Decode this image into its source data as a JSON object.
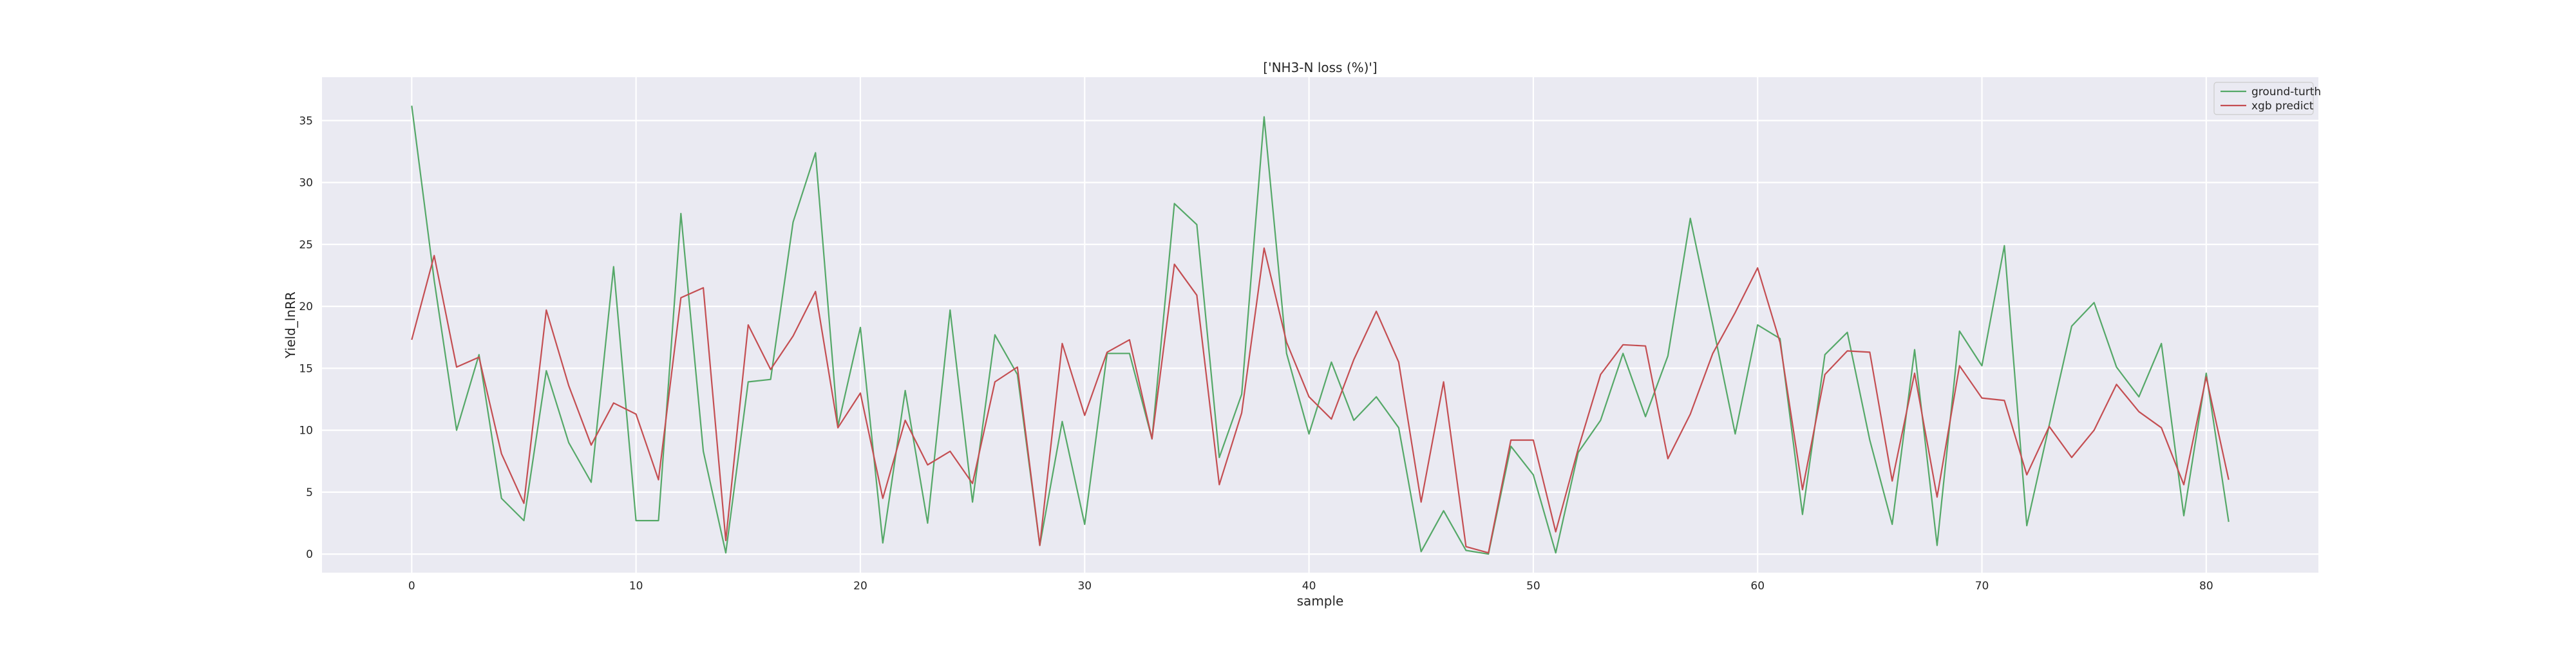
{
  "chart_data": {
    "type": "line",
    "title": "['NH3-N loss (%)']",
    "xlabel": "sample",
    "ylabel": "Yield_lnRR",
    "xlim": [
      -4,
      85
    ],
    "ylim": [
      -1.5,
      38.5
    ],
    "xticks": [
      0,
      10,
      20,
      30,
      40,
      50,
      60,
      70,
      80
    ],
    "yticks": [
      0,
      5,
      10,
      15,
      20,
      25,
      30,
      35
    ],
    "grid": true,
    "legend_position": "top-right",
    "series": [
      {
        "name": "ground-turth",
        "color": "#55a868",
        "values": [
          36.2,
          22.1,
          10.0,
          16.1,
          4.5,
          2.7,
          14.8,
          9.0,
          5.8,
          23.2,
          2.7,
          2.7,
          27.5,
          8.3,
          0.1,
          13.9,
          14.1,
          26.8,
          32.4,
          10.3,
          18.3,
          0.9,
          13.2,
          2.5,
          19.7,
          4.2,
          17.7,
          14.5,
          0.7,
          10.7,
          2.4,
          16.2,
          16.2,
          9.3,
          28.3,
          26.6,
          7.8,
          12.9,
          35.3,
          16.2,
          9.7,
          15.5,
          10.8,
          12.7,
          10.2,
          0.2,
          3.5,
          0.3,
          0.0,
          8.7,
          6.4,
          0.1,
          8.2,
          10.8,
          16.2,
          11.1,
          16.0,
          27.1,
          18.5,
          9.7,
          18.5,
          17.4,
          3.2,
          16.1,
          17.9,
          9.2,
          2.4,
          16.5,
          0.7,
          18.0,
          15.2,
          24.9,
          2.3,
          10.4,
          18.4,
          20.3,
          15.1,
          12.7,
          17.0,
          3.1,
          14.6,
          2.6
        ]
      },
      {
        "name": "xgb predict",
        "color": "#c44e52",
        "values": [
          17.3,
          24.1,
          15.1,
          15.9,
          8.1,
          4.1,
          19.7,
          13.6,
          8.8,
          12.2,
          11.3,
          6.0,
          20.7,
          21.5,
          1.1,
          18.5,
          14.9,
          17.6,
          21.2,
          10.2,
          13.0,
          4.5,
          10.8,
          7.2,
          8.3,
          5.7,
          13.9,
          15.1,
          0.7,
          17.0,
          11.2,
          16.3,
          17.3,
          9.3,
          23.4,
          20.9,
          5.6,
          11.4,
          24.7,
          17.1,
          12.7,
          10.9,
          15.7,
          19.6,
          15.5,
          4.2,
          13.9,
          0.6,
          0.1,
          9.2,
          9.2,
          1.8,
          8.5,
          14.5,
          16.9,
          16.8,
          7.7,
          11.3,
          16.2,
          19.5,
          23.1,
          17.1,
          5.2,
          14.5,
          16.4,
          16.3,
          5.9,
          14.6,
          4.6,
          15.2,
          12.6,
          12.4,
          6.4,
          10.3,
          7.8,
          10.0,
          13.7,
          11.5,
          10.2,
          5.6,
          14.3,
          6.0
        ]
      }
    ]
  }
}
